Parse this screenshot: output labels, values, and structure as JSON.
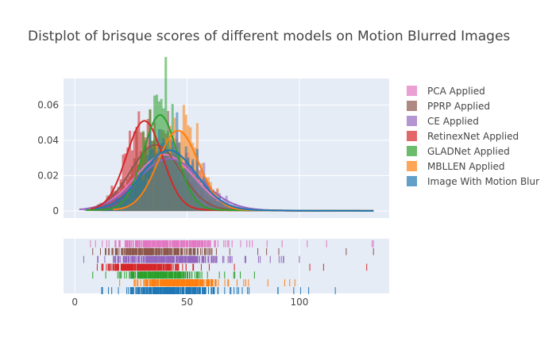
{
  "chart_data": {
    "type": "distplot",
    "title": "Distplot of brisque scores of different models on Motion Blurred Images",
    "xlabel": "",
    "ylabel": "",
    "xlim": [
      -5,
      140
    ],
    "ylim": [
      -0.004,
      0.075
    ],
    "x_ticks": [
      0,
      50,
      100
    ],
    "y_ticks": [
      0,
      0.02,
      0.04,
      0.06
    ],
    "y_tick_labels": [
      "0",
      "0.02",
      "0.04",
      "0.06"
    ],
    "legend_position": "right",
    "grid": true,
    "series": [
      {
        "name": "PCA Applied",
        "color": "#e377c2",
        "mean": 40,
        "sd": 13,
        "rug_min": 7,
        "rug_max": 133
      },
      {
        "name": "PPRP Applied",
        "color": "#8c564b",
        "mean": 36,
        "sd": 11,
        "rug_min": 8,
        "rug_max": 133
      },
      {
        "name": "CE Applied",
        "color": "#9467bd",
        "mean": 42,
        "sd": 14,
        "rug_min": 4,
        "rug_max": 100
      },
      {
        "name": "RetinexNet Applied",
        "color": "#d62728",
        "mean": 31,
        "sd": 8,
        "rug_min": 10,
        "rug_max": 130
      },
      {
        "name": "GLADNet Applied",
        "color": "#2ca02c",
        "mean": 38,
        "sd": 7.5,
        "rug_min": 8,
        "rug_max": 80
      },
      {
        "name": "MBLLEN Applied",
        "color": "#ff7f0e",
        "mean": 46,
        "sd": 9,
        "rug_min": 20,
        "rug_max": 98
      },
      {
        "name": "Image With Motion Blur",
        "color": "#1f77b4",
        "mean": 42,
        "sd": 12,
        "rug_min": 12,
        "rug_max": 116
      }
    ]
  }
}
